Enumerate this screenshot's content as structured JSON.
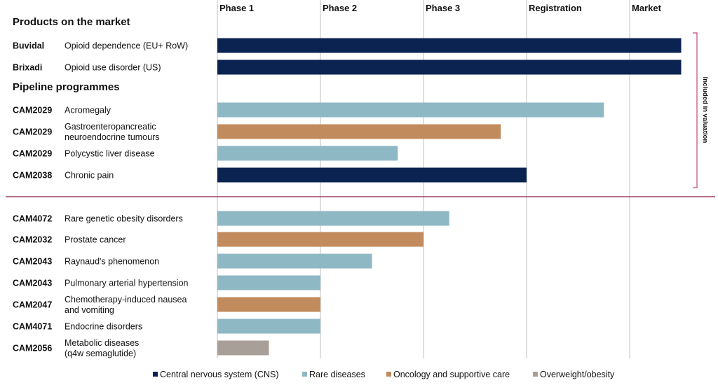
{
  "chart_data": {
    "type": "bar",
    "orientation": "horizontal",
    "stages": [
      "Phase 1",
      "Phase 2",
      "Phase 3",
      "Registration",
      "Market"
    ],
    "sections": [
      {
        "title": "Products on the market",
        "rows": [
          {
            "code": "Buvidal",
            "indication": [
              "Opioid dependence (EU+ RoW)"
            ],
            "category": "cns",
            "progress": 4.5
          },
          {
            "code": "Brixadi",
            "indication": [
              "Opioid use disorder (US)"
            ],
            "category": "cns",
            "progress": 4.5
          }
        ]
      },
      {
        "title": "Pipeline programmes",
        "rows": [
          {
            "code": "CAM2029",
            "indication": [
              "Acromegaly"
            ],
            "category": "rare",
            "progress": 3.75
          },
          {
            "code": "CAM2029",
            "indication": [
              "Gastroenteropancreatic",
              "neuroendocrine tumours"
            ],
            "category": "onc",
            "progress": 2.75
          },
          {
            "code": "CAM2029",
            "indication": [
              "Polycystic liver disease"
            ],
            "category": "rare",
            "progress": 1.75
          },
          {
            "code": "CAM2038",
            "indication": [
              "Chronic pain"
            ],
            "category": "cns",
            "progress": 3.0
          }
        ]
      },
      {
        "title": "",
        "rows": [
          {
            "code": "CAM4072",
            "indication": [
              "Rare genetic obesity disorders"
            ],
            "category": "rare",
            "progress": 2.25
          },
          {
            "code": "CAM2032",
            "indication": [
              "Prostate cancer"
            ],
            "category": "onc",
            "progress": 2.0
          },
          {
            "code": "CAM2043",
            "indication": [
              "Raynaud's phenomenon"
            ],
            "category": "rare",
            "progress": 1.5
          },
          {
            "code": "CAM2043",
            "indication": [
              "Pulmonary arterial hypertension"
            ],
            "category": "rare",
            "progress": 1.0
          },
          {
            "code": "CAM2047",
            "indication": [
              "Chemotherapy-induced nausea",
              "and vomiting"
            ],
            "category": "onc",
            "progress": 1.0
          },
          {
            "code": "CAM4071",
            "indication": [
              "Endocrine disorders"
            ],
            "category": "rare",
            "progress": 1.0
          },
          {
            "code": "CAM2056",
            "indication": [
              "Metabolic diseases",
              "(q4w semaglutide)"
            ],
            "category": "obesity",
            "progress": 0.5
          }
        ]
      }
    ],
    "bracket_label": "Included in valuation",
    "legend": [
      {
        "key": "cns",
        "label": "Central nervous system (CNS)"
      },
      {
        "key": "rare",
        "label": "Rare diseases"
      },
      {
        "key": "onc",
        "label": "Oncology and supportive care"
      },
      {
        "key": "obesity",
        "label": "Overweight/obesity"
      }
    ],
    "colors": {
      "cns": "#0b2350",
      "rare": "#8fb8c5",
      "onc": "#c18b5d",
      "obesity": "#a89f98",
      "divider": "#8a1c4a",
      "bracket": "#c0457a",
      "grid": "#bfbfbf"
    }
  }
}
